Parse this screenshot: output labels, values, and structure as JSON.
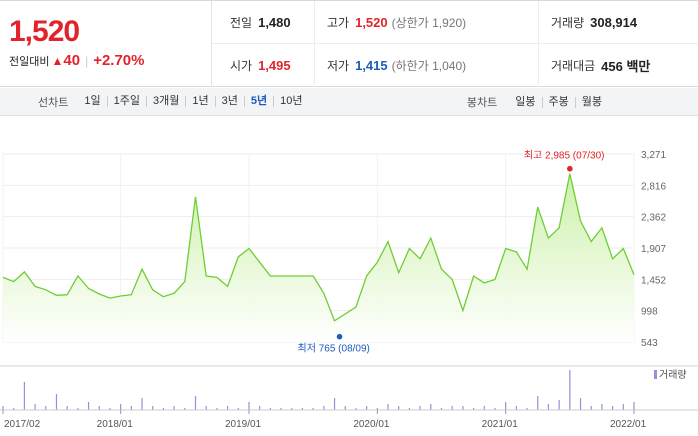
{
  "quote": {
    "price": "1,520",
    "change_label": "전일대비",
    "change_arrow": "▲",
    "change_amount": "40",
    "change_percent": "+2.70%"
  },
  "stats": {
    "prev_close": {
      "label": "전일",
      "value": "1,480"
    },
    "high": {
      "label": "고가",
      "value": "1,520",
      "sub": "(상한가 1,920)"
    },
    "volume": {
      "label": "거래량",
      "value": "308,914"
    },
    "open": {
      "label": "시가",
      "value": "1,495"
    },
    "low": {
      "label": "저가",
      "value": "1,415",
      "sub": "(하한가 1,040)"
    },
    "turnover": {
      "label": "거래대금",
      "value": "456 백만"
    }
  },
  "toolbar": {
    "line_chart_label": "선차트",
    "periods": [
      "1일",
      "1주일",
      "3개월",
      "1년",
      "3년",
      "5년",
      "10년"
    ],
    "active_period": "5년",
    "candle_chart_label": "봉차트",
    "candles": [
      "일봉",
      "주봉",
      "월봉"
    ]
  },
  "colors": {
    "up": "#e1242b",
    "down": "#1c5bbf",
    "line": "#6fcd35",
    "fill_top": "#c9f0a4",
    "volume_bar": "#9b8fd6"
  },
  "chart_data": {
    "type": "area",
    "x": [
      "2017/02",
      "2017/03",
      "2017/04",
      "2017/05",
      "2017/06",
      "2017/07",
      "2017/08",
      "2017/09",
      "2017/10",
      "2017/11",
      "2017/12",
      "2018/01",
      "2018/02",
      "2018/03",
      "2018/04",
      "2018/05",
      "2018/06",
      "2018/07",
      "2018/08",
      "2018/09",
      "2018/10",
      "2018/11",
      "2018/12",
      "2019/01",
      "2019/02",
      "2019/03",
      "2019/04",
      "2019/05",
      "2019/06",
      "2019/07",
      "2019/08",
      "2019/09",
      "2019/10",
      "2019/11",
      "2019/12",
      "2020/01",
      "2020/02",
      "2020/03",
      "2020/04",
      "2020/05",
      "2020/06",
      "2020/07",
      "2020/08",
      "2020/09",
      "2020/10",
      "2020/11",
      "2020/12",
      "2021/01",
      "2021/02",
      "2021/03",
      "2021/04",
      "2021/05",
      "2021/06",
      "2021/07",
      "2021/08",
      "2021/09",
      "2021/10",
      "2021/11",
      "2021/12",
      "2022/01"
    ],
    "series": [
      {
        "values": [
          1480,
          1420,
          1560,
          1350,
          1300,
          1220,
          1230,
          1500,
          1320,
          1240,
          1180,
          1210,
          1230,
          1600,
          1300,
          1200,
          1250,
          1420,
          2650,
          1500,
          1480,
          1350,
          1780,
          1900,
          1700,
          1500,
          1500,
          1500,
          1500,
          1500,
          1250,
          850,
          950,
          1050,
          1500,
          1700,
          2000,
          1550,
          1900,
          1750,
          2050,
          1600,
          1450,
          1000,
          1500,
          1400,
          1450,
          1900,
          1850,
          1600,
          2500,
          2050,
          2200,
          2985,
          2300,
          2000,
          2200,
          1750,
          1900,
          1520
        ]
      }
    ],
    "y_ticks": [
      "3,271",
      "2,816",
      "2,362",
      "1,907",
      "1,452",
      "998",
      "543"
    ],
    "ylim": [
      543,
      3271
    ],
    "x_tick_labels": [
      "2017/02",
      "2018/01",
      "2019/01",
      "2020/01",
      "2021/01",
      "2022/01"
    ],
    "max_annotation": "최고 2,985 (07/30)",
    "min_annotation": "최저 765 (08/09)",
    "max_value": 2985,
    "min_value": 765,
    "volume_legend": "거래량",
    "volume": [
      0.1,
      0.05,
      0.7,
      0.15,
      0.1,
      0.4,
      0.1,
      0.05,
      0.2,
      0.1,
      0.05,
      0.15,
      0.1,
      0.3,
      0.1,
      0.05,
      0.1,
      0.05,
      0.35,
      0.1,
      0.05,
      0.1,
      0.05,
      0.2,
      0.1,
      0.05,
      0.05,
      0.05,
      0.05,
      0.05,
      0.1,
      0.3,
      0.1,
      0.05,
      0.1,
      0.05,
      0.15,
      0.1,
      0.05,
      0.1,
      0.15,
      0.05,
      0.1,
      0.1,
      0.05,
      0.1,
      0.05,
      0.2,
      0.1,
      0.05,
      0.35,
      0.15,
      0.25,
      1.0,
      0.3,
      0.1,
      0.15,
      0.1,
      0.15,
      0.2
    ],
    "grid": true
  }
}
